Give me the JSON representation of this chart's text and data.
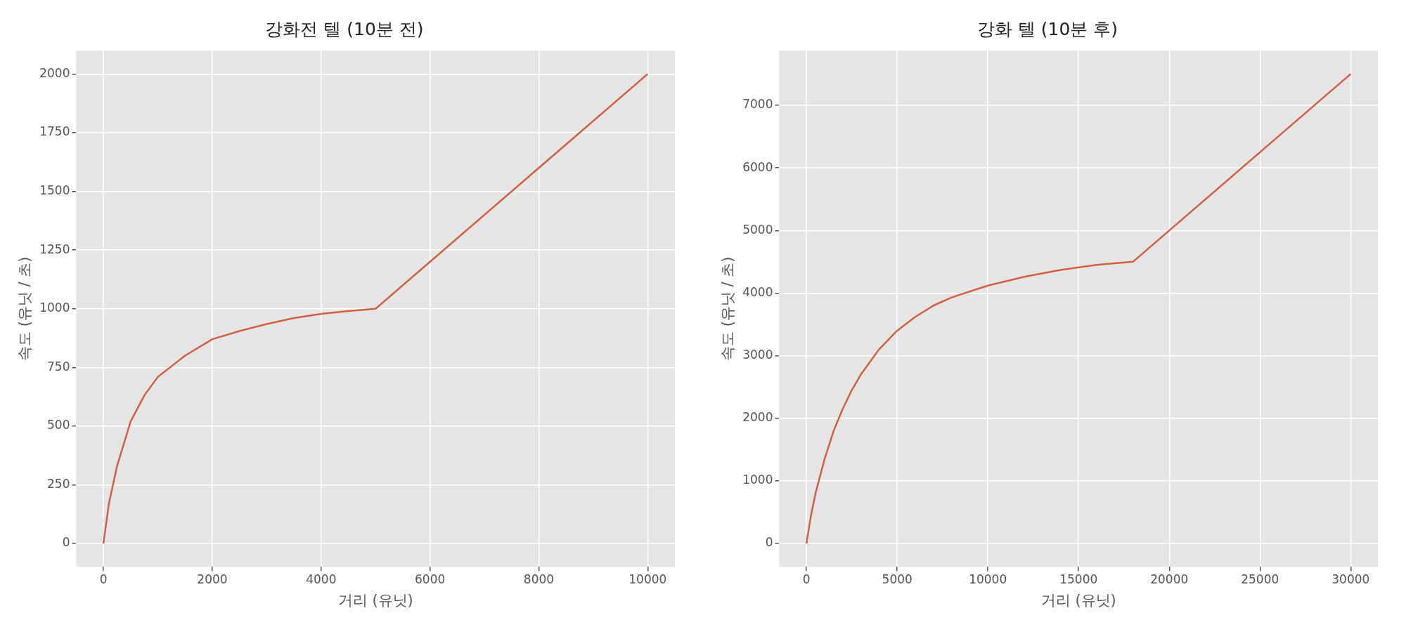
{
  "chart_data": [
    {
      "type": "line",
      "title": "강화전 텔 (10분 전)",
      "xlabel": "거리 (유닛)",
      "ylabel": "속도 (유닛 / 초)",
      "xlim": [
        -500,
        10500
      ],
      "xticks": [
        0,
        2000,
        4000,
        6000,
        8000,
        10000
      ],
      "ylim": [
        -100,
        2100
      ],
      "yticks": [
        0,
        250,
        500,
        750,
        1000,
        1250,
        1500,
        1750,
        2000
      ],
      "grid": true,
      "legend": false,
      "marker": "none",
      "line_style": "solid",
      "series": [
        {
          "color": "#d0603f",
          "x": [
            0,
            100,
            250,
            500,
            750,
            1000,
            1500,
            2000,
            2500,
            3000,
            3500,
            4000,
            4500,
            5000,
            10000
          ],
          "values": [
            0,
            170,
            330,
            520,
            630,
            710,
            800,
            870,
            905,
            935,
            960,
            978,
            990,
            1000,
            2000
          ]
        }
      ]
    },
    {
      "type": "line",
      "title": "강화 텔 (10분 후)",
      "xlabel": "거리 (유닛)",
      "ylabel": "속도 (유닛 / 초)",
      "xlim": [
        -1500,
        31500
      ],
      "xticks": [
        0,
        5000,
        10000,
        15000,
        20000,
        25000,
        30000
      ],
      "ylim": [
        -375,
        7875
      ],
      "yticks": [
        0,
        1000,
        2000,
        3000,
        4000,
        5000,
        6000,
        7000
      ],
      "grid": true,
      "legend": false,
      "marker": "none",
      "line_style": "solid",
      "series": [
        {
          "color": "#d0603f",
          "x": [
            0,
            250,
            500,
            1000,
            1500,
            2000,
            2500,
            3000,
            4000,
            5000,
            6000,
            7000,
            8000,
            10000,
            12000,
            14000,
            16000,
            18000,
            30000
          ],
          "values": [
            0,
            450,
            800,
            1350,
            1800,
            2150,
            2450,
            2700,
            3100,
            3400,
            3620,
            3800,
            3930,
            4120,
            4260,
            4370,
            4450,
            4500,
            7500
          ]
        }
      ]
    }
  ]
}
